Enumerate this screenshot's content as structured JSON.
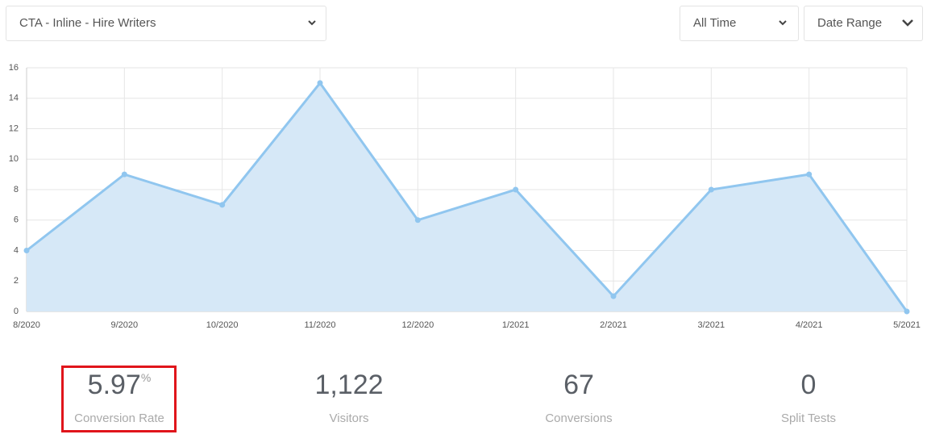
{
  "filters": {
    "cta": "CTA - Inline - Hire Writers",
    "period": "All Time",
    "range": "Date Range"
  },
  "chart_data": {
    "type": "area",
    "categories": [
      "8/2020",
      "9/2020",
      "10/2020",
      "11/2020",
      "12/2020",
      "1/2021",
      "2/2021",
      "3/2021",
      "4/2021",
      "5/2021"
    ],
    "values": [
      4,
      9,
      7,
      15,
      6,
      8,
      1,
      8,
      9,
      0
    ],
    "color": "#90c6ef",
    "fill": "#d6e8f7",
    "ylim": [
      0,
      16
    ],
    "yticks": [
      0,
      2,
      4,
      6,
      8,
      10,
      12,
      14,
      16
    ],
    "grid": true
  },
  "stats": [
    {
      "value": "5.97",
      "unit": "%",
      "label": "Conversion Rate"
    },
    {
      "value": "1,122",
      "label": "Visitors"
    },
    {
      "value": "67",
      "label": "Conversions"
    },
    {
      "value": "0",
      "label": "Split Tests"
    }
  ]
}
